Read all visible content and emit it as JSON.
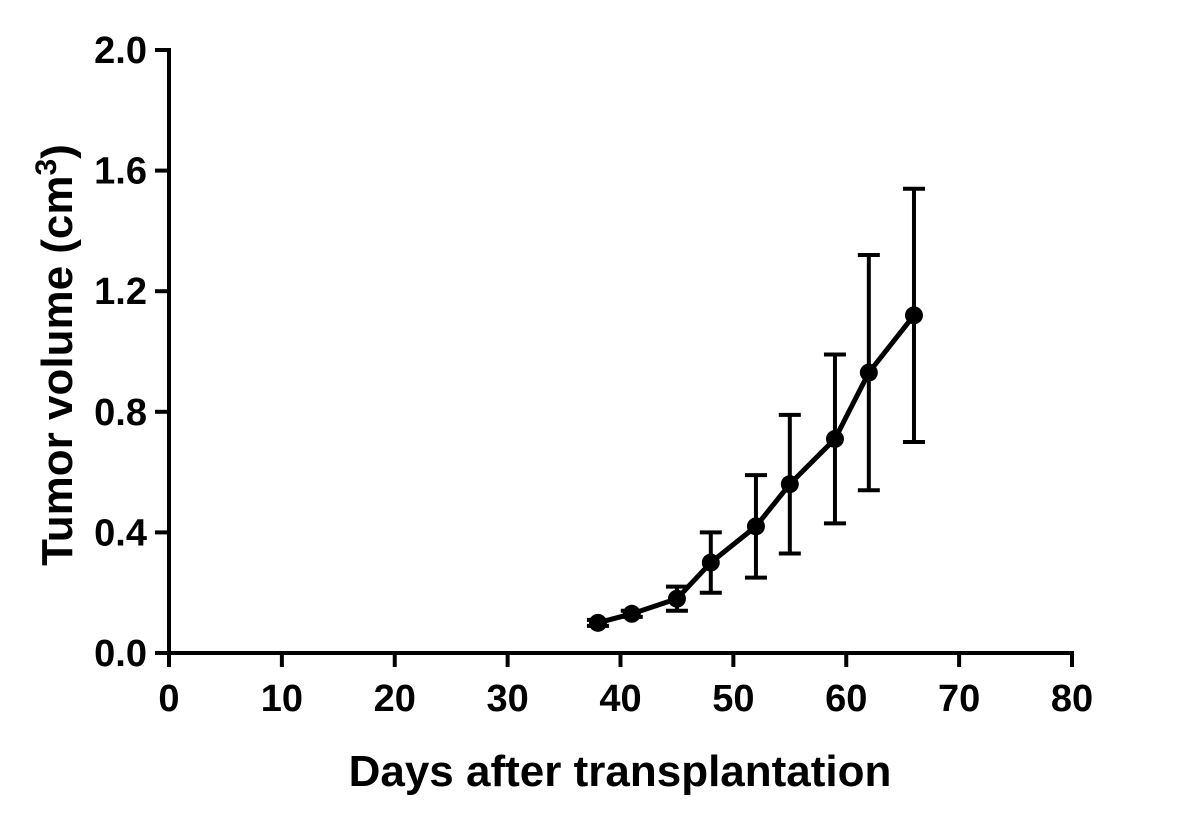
{
  "chart_data": {
    "type": "line",
    "title": "",
    "xlabel": "Days after transplantation",
    "ylabel": "Tumor  volume  (cm",
    "ylabel_superscript": "3",
    "ylabel_suffix": ")",
    "xlim": [
      0,
      80
    ],
    "ylim": [
      0,
      2.0
    ],
    "xticks": [
      0,
      10,
      20,
      30,
      40,
      50,
      60,
      70,
      80
    ],
    "xtick_labels": [
      "0",
      "10",
      "20",
      "30",
      "40",
      "50",
      "60",
      "70",
      "80"
    ],
    "yticks": [
      0,
      0.4,
      0.8,
      1.2,
      1.6,
      2.0
    ],
    "ytick_labels": [
      "0.0",
      "0.4",
      "0.8",
      "1.2",
      "1.6",
      "2.0"
    ],
    "grid": false,
    "legend": "none",
    "series": [
      {
        "color": "#000000",
        "x": [
          38,
          41,
          45,
          48,
          52,
          55,
          59,
          62,
          66
        ],
        "y": [
          0.1,
          0.13,
          0.18,
          0.3,
          0.42,
          0.56,
          0.71,
          0.93,
          1.12
        ],
        "error": [
          0.01,
          0.01,
          0.04,
          0.1,
          0.17,
          0.23,
          0.28,
          0.39,
          0.42
        ]
      }
    ]
  }
}
